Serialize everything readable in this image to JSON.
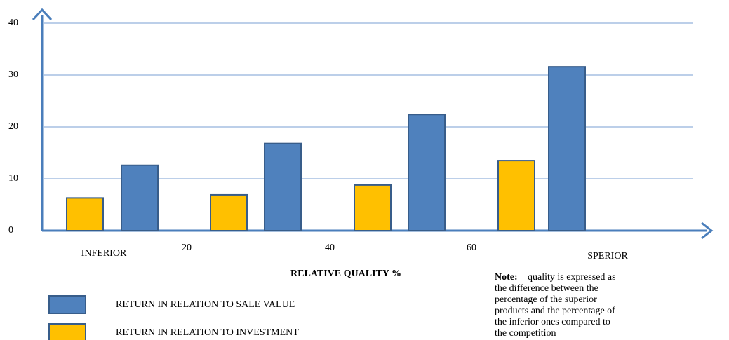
{
  "chart_data": {
    "type": "bar",
    "x_labels": [
      "INFERIOR",
      "20",
      "40",
      "60",
      "SPERIOR"
    ],
    "x_axis_label": "RELATIVE QUALITY %",
    "series": [
      {
        "name": "RETURN IN RELATION TO INVESTMENT",
        "color": "#ffc000",
        "values": [
          6.3,
          6.9,
          8.8,
          13.5
        ]
      },
      {
        "name": "RETURN IN RELATION TO SALE VALUE",
        "color": "#4f81bd",
        "values": [
          12.6,
          16.8,
          22.4,
          31.6
        ]
      }
    ],
    "ylim": [
      0,
      40
    ],
    "yticks": [
      0,
      10,
      20,
      30,
      40
    ],
    "grid": true,
    "note_label": "Note:",
    "note_lines": [
      "quality is expressed as",
      "the difference between the",
      "percentage of the superior",
      "products and the percentage of",
      "the inferior ones compared to",
      "the competition"
    ]
  }
}
